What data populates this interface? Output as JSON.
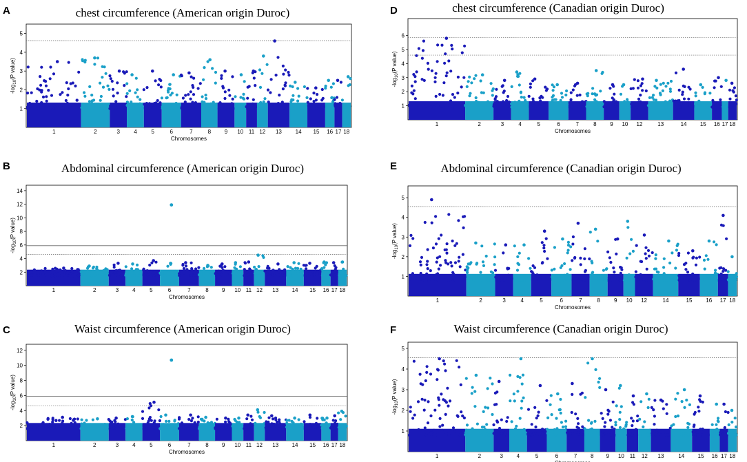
{
  "figure": {
    "xlabel": "Chromosomes",
    "ylabel_prefix": "-log",
    "ylabel_sub": "10",
    "ylabel_suffix": "(P value)",
    "colors": {
      "odd": "#1a1ab8",
      "even": "#1aa0c8",
      "sig_line": "#666666",
      "frame": "#000000"
    },
    "chromosomes": [
      "1",
      "2",
      "3",
      "4",
      "5",
      "6",
      "7",
      "8",
      "9",
      "10",
      "11",
      "12",
      "13",
      "14",
      "15",
      "16",
      "17",
      "18"
    ]
  },
  "chart_data": [
    {
      "letter": "A",
      "type": "scatter",
      "title": "chest circumference (American origin Duroc)",
      "xlabel": "Chromosomes",
      "ylim": [
        0,
        5.5
      ],
      "yticks": [
        1,
        2,
        3,
        4,
        5
      ],
      "chrom_labels": [
        "1",
        "2",
        "3",
        "4",
        "5",
        "6",
        "7",
        "8",
        "9",
        "10",
        "11",
        "12",
        "13",
        "14",
        "15",
        "16",
        "17",
        "18"
      ],
      "chrom_sizes": [
        7,
        3.7,
        2.2,
        2.2,
        2.3,
        2.5,
        2.6,
        2.1,
        2.2,
        1.5,
        1.4,
        1.4,
        2.8,
        2.3,
        2.3,
        1.2,
        1.0,
        1.1
      ],
      "baseline": 1.0,
      "top_per_chrom": [
        3.5,
        3.7,
        3.0,
        2.8,
        3.0,
        2.8,
        2.9,
        3.6,
        3.0,
        2.8,
        3.0,
        3.8,
        4.6,
        2.4,
        2.1,
        2.5,
        2.5,
        2.7
      ],
      "hlines": [
        {
          "y": 4.62,
          "style": "dotted"
        }
      ],
      "outliers": []
    },
    {
      "letter": "D",
      "type": "scatter",
      "title": "chest circumference (Canadian origin Duroc)",
      "xlabel": "Chromosomes",
      "ylim": [
        0,
        7.2
      ],
      "yticks": [
        1,
        2,
        3,
        4,
        5,
        6
      ],
      "chrom_labels": [
        "1",
        "2",
        "3",
        "4",
        "5",
        "6",
        "7",
        "8",
        "9",
        "10",
        "12",
        "13",
        "14",
        "15",
        "16",
        "17",
        "18"
      ],
      "chrom_sizes": [
        8,
        4,
        2.5,
        2.5,
        2.8,
        2.8,
        2.5,
        2.5,
        2.2,
        1.6,
        2.5,
        3.5,
        3,
        2.5,
        1.4,
        0.9,
        1.2
      ],
      "baseline": 0.9,
      "top_per_chrom": [
        5.8,
        3.2,
        2.8,
        3.4,
        2.9,
        2.5,
        2.6,
        3.5,
        2.5,
        2.5,
        2.9,
        2.8,
        3.6,
        2.5,
        3.0,
        2.8,
        2.6
      ],
      "hlines": [
        {
          "y": 5.85,
          "style": "dotted"
        },
        {
          "y": 4.6,
          "style": "dotted"
        }
      ],
      "outliers": []
    },
    {
      "letter": "B",
      "type": "scatter",
      "title": "Abdominal  circumference (American origin Duroc)",
      "xlabel": "Chromosomes",
      "ylim": [
        0,
        14.8
      ],
      "yticks": [
        2,
        4,
        6,
        8,
        10,
        12,
        14
      ],
      "chrom_labels": [
        "1",
        "2",
        "3",
        "4",
        "5",
        "6",
        "7",
        "8",
        "9",
        "10",
        "11",
        "12",
        "13",
        "14",
        "15",
        "16",
        "17",
        "18"
      ],
      "chrom_sizes": [
        7,
        3.7,
        2.2,
        2.2,
        2.3,
        2.5,
        2.6,
        2.1,
        2.2,
        1.5,
        1.4,
        1.4,
        2.8,
        2.3,
        2.3,
        1.2,
        1.0,
        1.1
      ],
      "baseline": 1.5,
      "top_per_chrom": [
        2.6,
        2.9,
        3.3,
        3.2,
        3.7,
        3.3,
        3.4,
        3.0,
        3.2,
        3.4,
        3.5,
        4.5,
        3.2,
        3.4,
        3.3,
        3.5,
        3.4,
        3.5
      ],
      "hlines": [
        {
          "y": 5.9,
          "style": "solid"
        },
        {
          "y": 4.6,
          "style": "dotted"
        }
      ],
      "outliers": [
        {
          "x_chrom": 6.6,
          "y": 11.9
        }
      ]
    },
    {
      "letter": "E",
      "type": "scatter",
      "title": "Abdominal  circumference (Canadian origin Duroc)",
      "xlabel": "Chromosomes",
      "ylim": [
        0,
        5.6
      ],
      "yticks": [
        1,
        2,
        3,
        4,
        5
      ],
      "chrom_labels": [
        "1",
        "2",
        "3",
        "4",
        "5",
        "6",
        "7",
        "8",
        "9",
        "10",
        "12",
        "14",
        "15",
        "16",
        "17",
        "18"
      ],
      "chrom_sizes": [
        8,
        4,
        2.5,
        2.5,
        2.8,
        2.8,
        2.5,
        2.5,
        2.2,
        1.6,
        2.5,
        3.5,
        3,
        2.5,
        1.4,
        1.2
      ],
      "baseline": 0.8,
      "top_per_chrom": [
        4.9,
        2.7,
        2.6,
        2.6,
        3.3,
        2.9,
        3.7,
        3.4,
        2.9,
        3.8,
        3.1,
        2.8,
        2.3,
        2.8,
        4.1,
        2.0
      ],
      "hlines": [
        {
          "y": 4.55,
          "style": "dotted"
        }
      ],
      "outliers": []
    },
    {
      "letter": "C",
      "type": "scatter",
      "title": "Waist  circumference (American origin Duroc)",
      "xlabel": "Chromosomes",
      "ylim": [
        0,
        12.8
      ],
      "yticks": [
        2,
        4,
        6,
        8,
        10,
        12
      ],
      "chrom_labels": [
        "1",
        "2",
        "3",
        "4",
        "5",
        "6",
        "7",
        "8",
        "9",
        "10",
        "11",
        "12",
        "13",
        "14",
        "15",
        "16",
        "17",
        "18"
      ],
      "chrom_sizes": [
        7,
        3.7,
        2.2,
        2.2,
        2.3,
        2.5,
        2.6,
        2.1,
        2.2,
        1.5,
        1.4,
        1.4,
        2.8,
        2.3,
        2.3,
        1.2,
        1.0,
        1.1
      ],
      "baseline": 1.6,
      "top_per_chrom": [
        3.1,
        2.9,
        3.0,
        3.2,
        5.1,
        3.4,
        3.4,
        3.1,
        3.0,
        3.0,
        3.4,
        4.1,
        3.3,
        3.0,
        3.4,
        3.0,
        3.3,
        3.9
      ],
      "hlines": [
        {
          "y": 5.9,
          "style": "solid"
        },
        {
          "y": 4.6,
          "style": "dotted"
        }
      ],
      "outliers": [
        {
          "x_chrom": 6.6,
          "y": 10.7
        }
      ]
    },
    {
      "letter": "F",
      "type": "scatter",
      "title": "Waist  circumference (Canadian origin Duroc)",
      "xlabel": "Chromosomes",
      "ylim": [
        0,
        5.3
      ],
      "yticks": [
        1,
        2,
        3,
        4,
        5
      ],
      "chrom_labels": [
        "1",
        "2",
        "3",
        "4",
        "5",
        "6",
        "7",
        "8",
        "9",
        "10",
        "11",
        "12",
        "13",
        "14",
        "15",
        "16",
        "17",
        "18"
      ],
      "chrom_sizes": [
        8,
        4,
        2.2,
        2.5,
        2.8,
        2.8,
        2.5,
        2.2,
        2.2,
        1.6,
        1.6,
        1.8,
        2.8,
        3,
        2.5,
        1.4,
        1.2,
        1.2
      ],
      "baseline": 0.8,
      "top_per_chrom": [
        4.5,
        3.7,
        3.4,
        4.5,
        3.2,
        2.8,
        3.3,
        4.5,
        3.0,
        3.2,
        2.7,
        2.8,
        2.5,
        3.0,
        2.7,
        2.3,
        2.3,
        2.0
      ],
      "hlines": [
        {
          "y": 4.55,
          "style": "dotted"
        }
      ],
      "outliers": []
    }
  ]
}
